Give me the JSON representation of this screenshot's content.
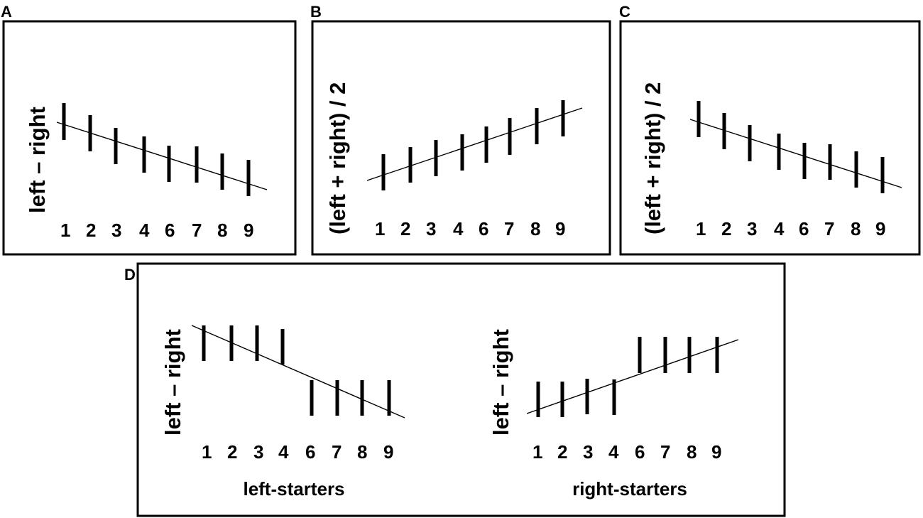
{
  "panels": {
    "a": {
      "letter": "A",
      "ylabel": "left – right",
      "ticks": [
        "1",
        "2",
        "3",
        "4",
        "6",
        "7",
        "8",
        "9"
      ]
    },
    "b": {
      "letter": "B",
      "ylabel": "(left + right) / 2",
      "ticks": [
        "1",
        "2",
        "3",
        "4",
        "6",
        "7",
        "8",
        "9"
      ]
    },
    "c": {
      "letter": "C",
      "ylabel": "(left + right) / 2",
      "ticks": [
        "1",
        "2",
        "3",
        "4",
        "6",
        "7",
        "8",
        "9"
      ]
    },
    "d": {
      "letter": "D",
      "left": {
        "ylabel": "left – right",
        "ticks": [
          "1",
          "2",
          "3",
          "4",
          "6",
          "7",
          "8",
          "9"
        ],
        "caption": "left-starters"
      },
      "right": {
        "ylabel": "left – right",
        "ticks": [
          "1",
          "2",
          "3",
          "4",
          "6",
          "7",
          "8",
          "9"
        ],
        "caption": "right-starters"
      }
    }
  }
}
